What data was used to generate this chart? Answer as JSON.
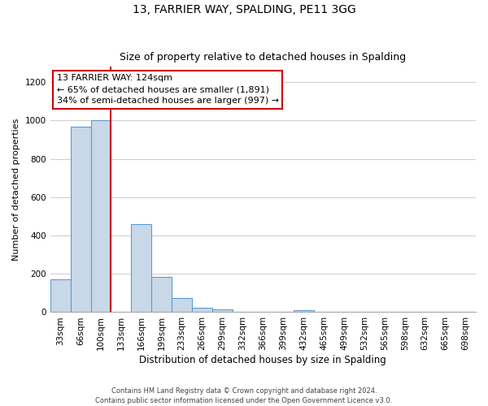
{
  "title": "13, FARRIER WAY, SPALDING, PE11 3GG",
  "subtitle": "Size of property relative to detached houses in Spalding",
  "xlabel": "Distribution of detached houses by size in Spalding",
  "ylabel": "Number of detached properties",
  "categories": [
    "33sqm",
    "66sqm",
    "100sqm",
    "133sqm",
    "166sqm",
    "199sqm",
    "233sqm",
    "266sqm",
    "299sqm",
    "332sqm",
    "366sqm",
    "399sqm",
    "432sqm",
    "465sqm",
    "499sqm",
    "532sqm",
    "565sqm",
    "598sqm",
    "632sqm",
    "665sqm",
    "698sqm"
  ],
  "values": [
    170,
    970,
    1000,
    0,
    460,
    185,
    75,
    25,
    15,
    0,
    0,
    0,
    10,
    0,
    0,
    0,
    0,
    0,
    0,
    0,
    0
  ],
  "bar_color": "#c8d8e8",
  "bar_edge_color": "#5b9bd5",
  "property_line_x": 2.5,
  "property_line_color": "#cc0000",
  "annotation_line1": "13 FARRIER WAY: 124sqm",
  "annotation_line2": "← 65% of detached houses are smaller (1,891)",
  "annotation_line3": "34% of semi-detached houses are larger (997) →",
  "annotation_box_color": "#ffffff",
  "annotation_box_edge_color": "#cc0000",
  "ylim": [
    0,
    1280
  ],
  "yticks": [
    0,
    200,
    400,
    600,
    800,
    1000,
    1200
  ],
  "footer_line1": "Contains HM Land Registry data © Crown copyright and database right 2024.",
  "footer_line2": "Contains public sector information licensed under the Open Government Licence v3.0.",
  "bg_color": "#ffffff",
  "grid_color": "#d0d0d0",
  "title_fontsize": 10,
  "subtitle_fontsize": 9,
  "xlabel_fontsize": 8.5,
  "ylabel_fontsize": 8,
  "tick_fontsize": 7.5,
  "annotation_fontsize": 8,
  "footer_fontsize": 6
}
